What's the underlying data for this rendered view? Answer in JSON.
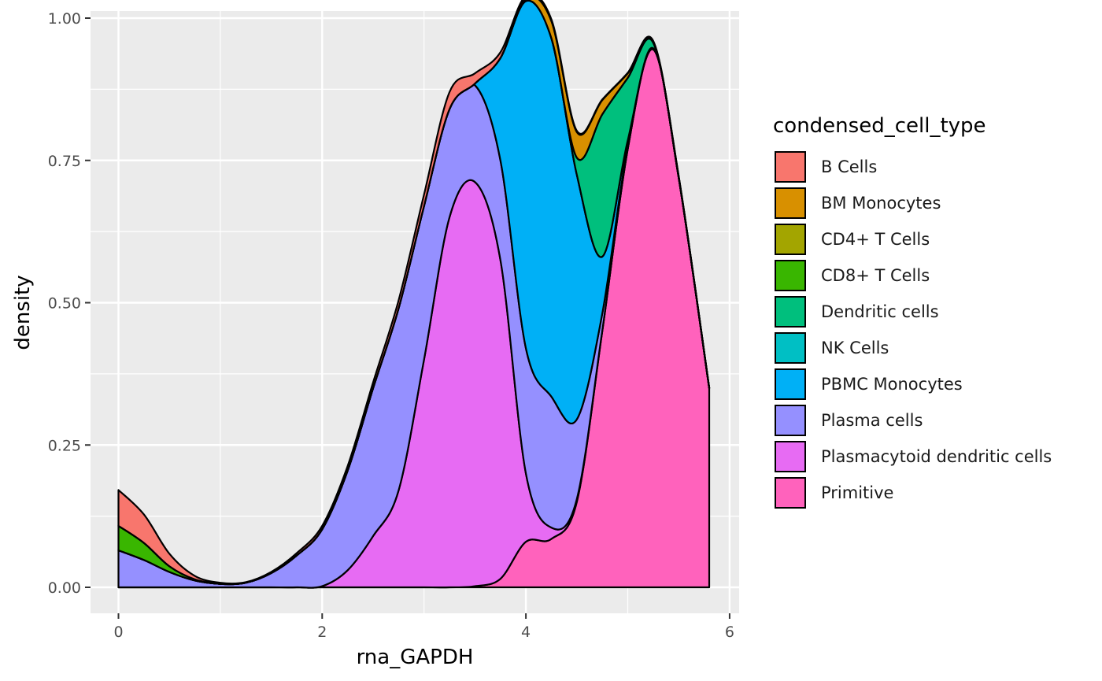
{
  "chart_data": {
    "type": "area",
    "subtype": "stacked density",
    "xlabel": "rna_GAPDH",
    "ylabel": "density",
    "xlim": [
      -0.28,
      6.1
    ],
    "ylim": [
      -0.05,
      1.01
    ],
    "x_ticks": [
      0,
      2,
      4,
      6
    ],
    "x_tick_labels": [
      "0",
      "2",
      "4",
      "6"
    ],
    "y_ticks": [
      0,
      0.25,
      0.5,
      0.75,
      1.0
    ],
    "y_tick_labels": [
      "0.00",
      "0.25",
      "0.50",
      "0.75",
      "1.00"
    ],
    "grid": true,
    "legend_position": "right",
    "legend_title": "condensed_cell_type",
    "x": [
      0,
      0.25,
      0.5,
      0.75,
      1.0,
      1.25,
      1.5,
      1.75,
      2.0,
      2.25,
      2.5,
      2.75,
      3.0,
      3.25,
      3.5,
      3.75,
      4.0,
      4.25,
      4.5,
      4.75,
      5.0,
      5.25,
      5.5,
      5.8
    ],
    "series": [
      {
        "name": "B Cells",
        "color": "#F8766D",
        "values": [
          0.063,
          0.05,
          0.022,
          0.006,
          0.002,
          0.001,
          0.002,
          0.004,
          0.006,
          0.008,
          0.01,
          0.014,
          0.02,
          0.03,
          0.018,
          0.01,
          0.005,
          0.003,
          0.002,
          0.001,
          0.001,
          0.001,
          0.001,
          0.001
        ]
      },
      {
        "name": "BM Monocytes",
        "color": "#D89000",
        "values": [
          0,
          0,
          0,
          0,
          0,
          0,
          0,
          0,
          0,
          0,
          0,
          0,
          0,
          0,
          0,
          0,
          0.004,
          0.03,
          0.045,
          0.025,
          0.008,
          0.002,
          0.001,
          0
        ]
      },
      {
        "name": "CD4+ T Cells",
        "color": "#A3A500",
        "values": [
          0,
          0,
          0,
          0,
          0,
          0,
          0,
          0,
          0,
          0,
          0,
          0,
          0,
          0,
          0,
          0,
          0,
          0,
          0,
          0,
          0,
          0,
          0,
          0
        ]
      },
      {
        "name": "CD8+ T Cells",
        "color": "#39B600",
        "values": [
          0.043,
          0.03,
          0.01,
          0.002,
          0,
          0,
          0,
          0,
          0,
          0,
          0,
          0,
          0,
          0,
          0,
          0,
          0,
          0,
          0,
          0,
          0,
          0,
          0,
          0
        ]
      },
      {
        "name": "Dendritic cells",
        "color": "#00BF7D",
        "values": [
          0,
          0,
          0,
          0,
          0,
          0,
          0,
          0,
          0,
          0,
          0,
          0,
          0,
          0,
          0,
          0,
          0,
          0,
          0.03,
          0.25,
          0.11,
          0.01,
          0.001,
          0
        ]
      },
      {
        "name": "NK Cells",
        "color": "#00BFC4",
        "values": [
          0,
          0,
          0,
          0,
          0,
          0,
          0,
          0,
          0,
          0,
          0,
          0,
          0,
          0,
          0,
          0,
          0,
          0,
          0,
          0,
          0,
          0,
          0,
          0
        ]
      },
      {
        "name": "PBMC Monocytes",
        "color": "#00B0F6",
        "values": [
          0,
          0,
          0,
          0,
          0,
          0,
          0,
          0,
          0,
          0,
          0,
          0,
          0,
          0,
          0.003,
          0.18,
          0.61,
          0.63,
          0.43,
          0.1,
          0.01,
          0.001,
          0,
          0
        ]
      },
      {
        "name": "Plasma cells",
        "color": "#9590FF",
        "values": [
          0.065,
          0.048,
          0.027,
          0.012,
          0.006,
          0.008,
          0.025,
          0.056,
          0.1,
          0.175,
          0.26,
          0.32,
          0.27,
          0.19,
          0.17,
          0.175,
          0.22,
          0.23,
          0.14,
          0.03,
          0.005,
          0.001,
          0,
          0
        ]
      },
      {
        "name": "Plasmacytoid dendritic cells",
        "color": "#E76BF3",
        "values": [
          0,
          0,
          0,
          0,
          0,
          0,
          0,
          0,
          0.002,
          0.03,
          0.09,
          0.17,
          0.4,
          0.65,
          0.71,
          0.56,
          0.12,
          0.02,
          0.005,
          0.001,
          0,
          0,
          0,
          0
        ]
      },
      {
        "name": "Primitive",
        "color": "#FF62BC",
        "values": [
          0,
          0,
          0,
          0,
          0,
          0,
          0,
          0,
          0,
          0,
          0,
          0,
          0,
          0,
          0.002,
          0.015,
          0.08,
          0.085,
          0.15,
          0.45,
          0.77,
          0.945,
          0.72,
          0.35
        ]
      }
    ]
  }
}
